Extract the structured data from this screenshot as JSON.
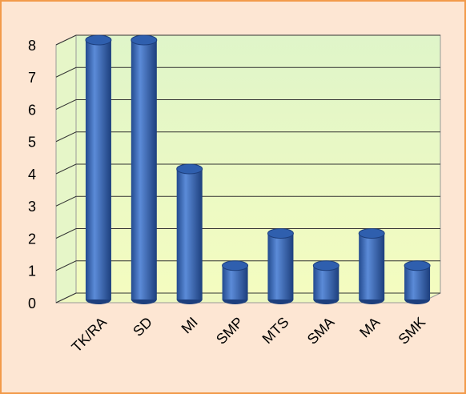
{
  "chart_data": {
    "type": "bar",
    "categories": [
      "TK/RA",
      "SD",
      "MI",
      "SMP",
      "MTS",
      "SMA",
      "MA",
      "SMK"
    ],
    "values": [
      8,
      8,
      4,
      1,
      2,
      1,
      2,
      1
    ],
    "color": "#3a6bbf",
    "ylim": [
      0,
      8
    ],
    "yticks": [
      0,
      1,
      2,
      3,
      4,
      5,
      6,
      7,
      8
    ],
    "grid": true
  }
}
